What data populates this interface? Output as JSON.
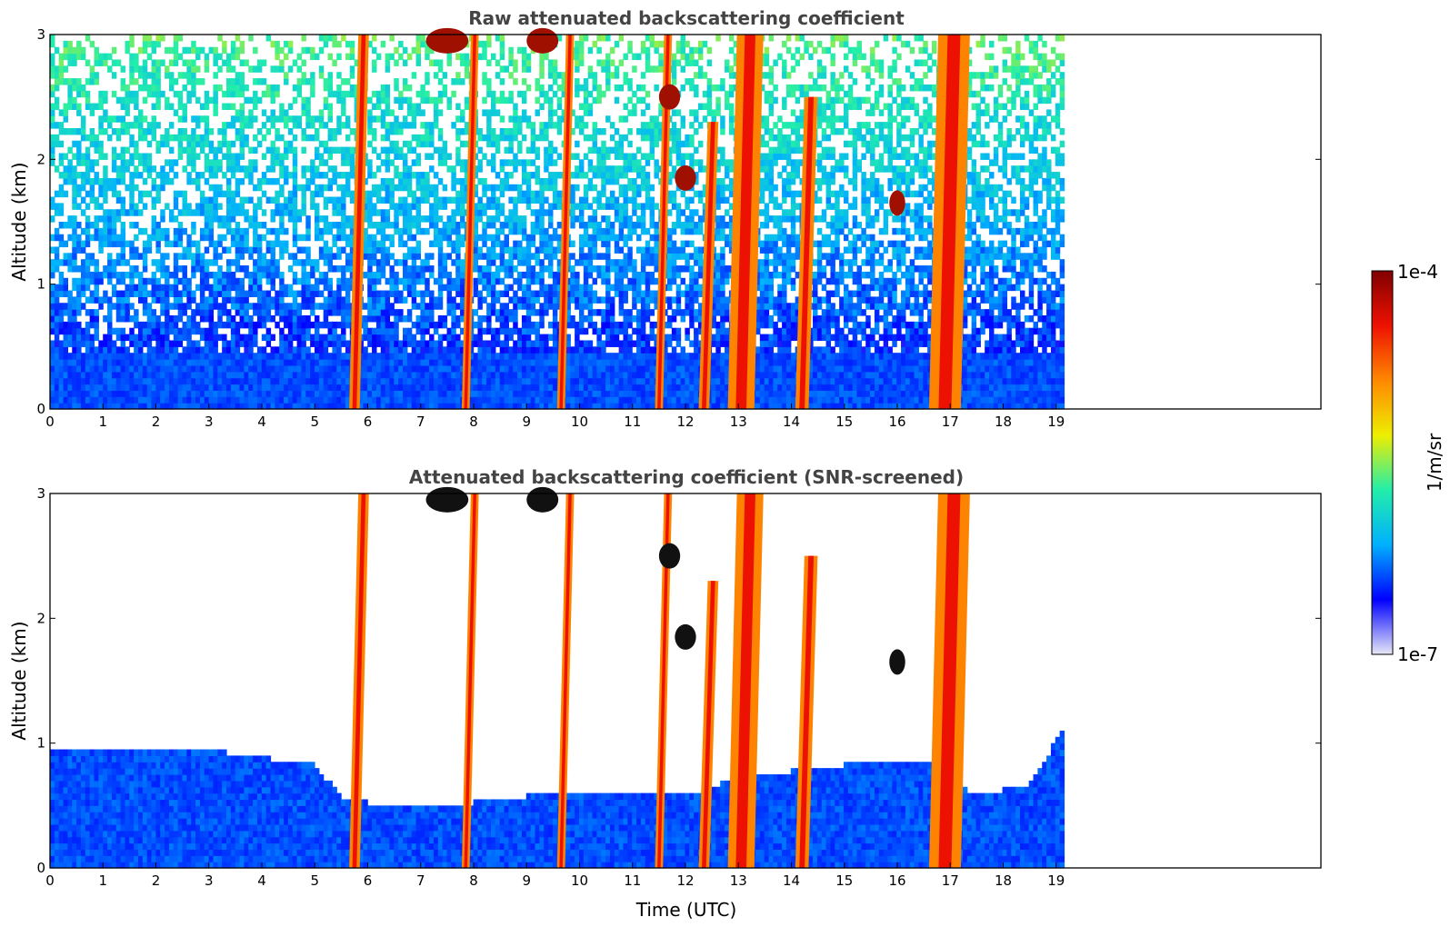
{
  "chart_data": [
    {
      "type": "heatmap",
      "title": "Raw attenuated backscattering coefficient",
      "xlabel": "",
      "ylabel": "Altitude (km)",
      "xlim": [
        0,
        24
      ],
      "ylim": [
        0,
        3
      ],
      "xticks": [
        "0",
        "1",
        "2",
        "3",
        "4",
        "5",
        "6",
        "7",
        "8",
        "9",
        "10",
        "11",
        "12",
        "13",
        "14",
        "15",
        "16",
        "17",
        "18",
        "19"
      ],
      "yticks": [
        "0",
        "1",
        "2",
        "3"
      ],
      "data_end_time": 19.15,
      "screened": false,
      "boundary_layer_top_km": 0.45,
      "noise_coverage_to_km": 3,
      "precipitation_streaks": [
        {
          "time": 5.75,
          "top_km": 3.0,
          "width_h": 0.2
        },
        {
          "time": 7.85,
          "top_km": 3.0,
          "width_h": 0.15
        },
        {
          "time": 9.65,
          "top_km": 3.0,
          "width_h": 0.15
        },
        {
          "time": 11.5,
          "top_km": 3.0,
          "width_h": 0.15
        },
        {
          "time": 12.35,
          "top_km": 2.3,
          "width_h": 0.2
        },
        {
          "time": 13.05,
          "top_km": 3.0,
          "width_h": 0.5
        },
        {
          "time": 14.2,
          "top_km": 2.5,
          "width_h": 0.25
        },
        {
          "time": 16.9,
          "top_km": 3.0,
          "width_h": 0.6
        }
      ],
      "cloud_patches": [
        {
          "time": 12.0,
          "alt_km": 1.85,
          "width_h": 0.4
        },
        {
          "time": 11.7,
          "alt_km": 2.5,
          "width_h": 0.4
        },
        {
          "time": 16.0,
          "alt_km": 1.65,
          "width_h": 0.3
        },
        {
          "time": 7.5,
          "alt_km": 2.95,
          "width_h": 0.8
        },
        {
          "time": 9.3,
          "alt_km": 2.95,
          "width_h": 0.6
        }
      ]
    },
    {
      "type": "heatmap",
      "title": "Attenuated backscattering coefficient (SNR-screened)",
      "xlabel": "Time (UTC)",
      "ylabel": "Altitude (km)",
      "xlim": [
        0,
        24
      ],
      "ylim": [
        0,
        3
      ],
      "xticks": [
        "0",
        "1",
        "2",
        "3",
        "4",
        "5",
        "6",
        "7",
        "8",
        "9",
        "10",
        "11",
        "12",
        "13",
        "14",
        "15",
        "16",
        "17",
        "18",
        "19"
      ],
      "yticks": [
        "0",
        "1",
        "2",
        "3"
      ],
      "data_end_time": 19.15,
      "screened": true,
      "boundary_layer_top_km": [
        [
          0,
          0.95
        ],
        [
          3,
          0.92
        ],
        [
          5,
          0.8
        ],
        [
          5.5,
          0.55
        ],
        [
          6,
          0.5
        ],
        [
          8,
          0.5
        ],
        [
          9,
          0.55
        ],
        [
          11,
          0.6
        ],
        [
          12,
          0.55
        ],
        [
          13,
          0.7
        ],
        [
          14,
          0.75
        ],
        [
          15,
          0.8
        ],
        [
          16.5,
          0.85
        ],
        [
          17.5,
          0.55
        ],
        [
          18.5,
          0.65
        ],
        [
          19.15,
          1.1
        ]
      ]
    }
  ],
  "colorbar": {
    "label": "1/m/sr",
    "max_label": "1e-4",
    "min_label": "1e-7",
    "colormap": "jet",
    "colors": [
      "#e8e8f6",
      "#0000ff",
      "#00b0ff",
      "#22eeaa",
      "#eeee00",
      "#ff8800",
      "#ee1100",
      "#800000"
    ]
  }
}
